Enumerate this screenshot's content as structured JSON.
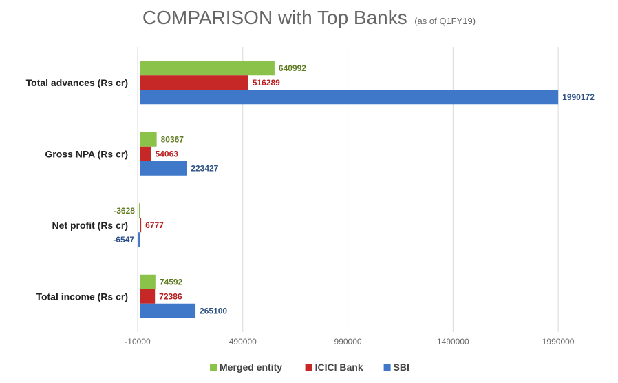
{
  "chart_data": {
    "type": "bar",
    "orientation": "horizontal",
    "title": "COMPARISON with Top Banks",
    "subtitle": "(as of Q1FY19)",
    "categories": [
      "Total advances (Rs cr)",
      "Gross NPA (Rs cr)",
      "Net profit (Rs cr)",
      "Total income (Rs cr)"
    ],
    "series": [
      {
        "name": "Merged entity",
        "color": "#8bc34a",
        "labelColor": "#5d7a1f",
        "values": [
          640992,
          80367,
          -3628,
          74592
        ]
      },
      {
        "name": "ICICI Bank",
        "color": "#c62828",
        "labelColor": "#b71c1c",
        "values": [
          516289,
          54063,
          6777,
          72386
        ]
      },
      {
        "name": "SBI",
        "color": "#3f78c8",
        "labelColor": "#2c4f85",
        "values": [
          1990172,
          223427,
          -6547,
          265100
        ]
      }
    ],
    "xlim": [
      -10000,
      2150000
    ],
    "xticks": [
      -10000,
      490000,
      990000,
      1490000,
      1990000
    ],
    "xtick_labels": [
      "-10000",
      "490000",
      "990000",
      "1490000",
      "1990000"
    ],
    "grid": true,
    "legend_position": "bottom"
  }
}
